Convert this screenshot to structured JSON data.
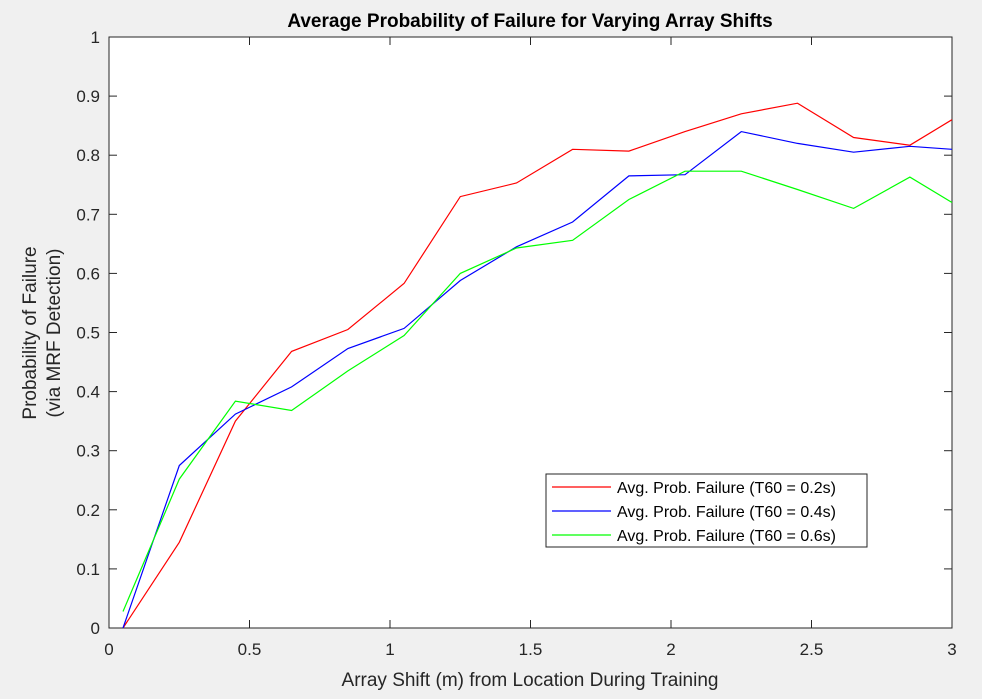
{
  "chart_data": {
    "type": "line",
    "title": "Average Probability of Failure for Varying Array Shifts",
    "xlabel": "Array Shift (m) from Location During Training",
    "ylabel_line1": "Probability of Failure",
    "ylabel_line2": "(via MRF Detection)",
    "xlim": [
      0,
      3
    ],
    "ylim": [
      0,
      1
    ],
    "xticks": [
      0,
      0.5,
      1,
      1.5,
      2,
      2.5,
      3
    ],
    "yticks": [
      0,
      0.1,
      0.2,
      0.3,
      0.4,
      0.5,
      0.6,
      0.7,
      0.8,
      0.9,
      1
    ],
    "xtick_labels": [
      "0",
      "0.5",
      "1",
      "1.5",
      "2",
      "2.5",
      "3"
    ],
    "ytick_labels": [
      "0",
      "0.1",
      "0.2",
      "0.3",
      "0.4",
      "0.5",
      "0.6",
      "0.7",
      "0.8",
      "0.9",
      "1"
    ],
    "grid": false,
    "legend_position": "lower-right",
    "x": [
      0.05,
      0.25,
      0.45,
      0.65,
      0.85,
      1.05,
      1.25,
      1.45,
      1.65,
      1.85,
      2.05,
      2.25,
      2.45,
      2.65,
      2.85,
      3.0
    ],
    "series": [
      {
        "name": "Avg. Prob. Failure (T60 = 0.2s)",
        "color": "#ff0000",
        "values": [
          0.0,
          0.145,
          0.35,
          0.468,
          0.505,
          0.583,
          0.73,
          0.753,
          0.81,
          0.807,
          0.84,
          0.87,
          0.888,
          0.83,
          0.817,
          0.86
        ]
      },
      {
        "name": "Avg. Prob. Failure (T60 = 0.4s)",
        "color": "#0000ff",
        "values": [
          0.0,
          0.275,
          0.362,
          0.408,
          0.473,
          0.507,
          0.588,
          0.645,
          0.687,
          0.765,
          0.767,
          0.84,
          0.82,
          0.805,
          0.815,
          0.81
        ]
      },
      {
        "name": "Avg. Prob. Failure (T60 = 0.6s)",
        "color": "#00ff00",
        "values": [
          0.028,
          0.252,
          0.384,
          0.368,
          0.435,
          0.495,
          0.6,
          0.643,
          0.656,
          0.725,
          0.773,
          0.773,
          0.742,
          0.71,
          0.763,
          0.72
        ]
      }
    ]
  }
}
